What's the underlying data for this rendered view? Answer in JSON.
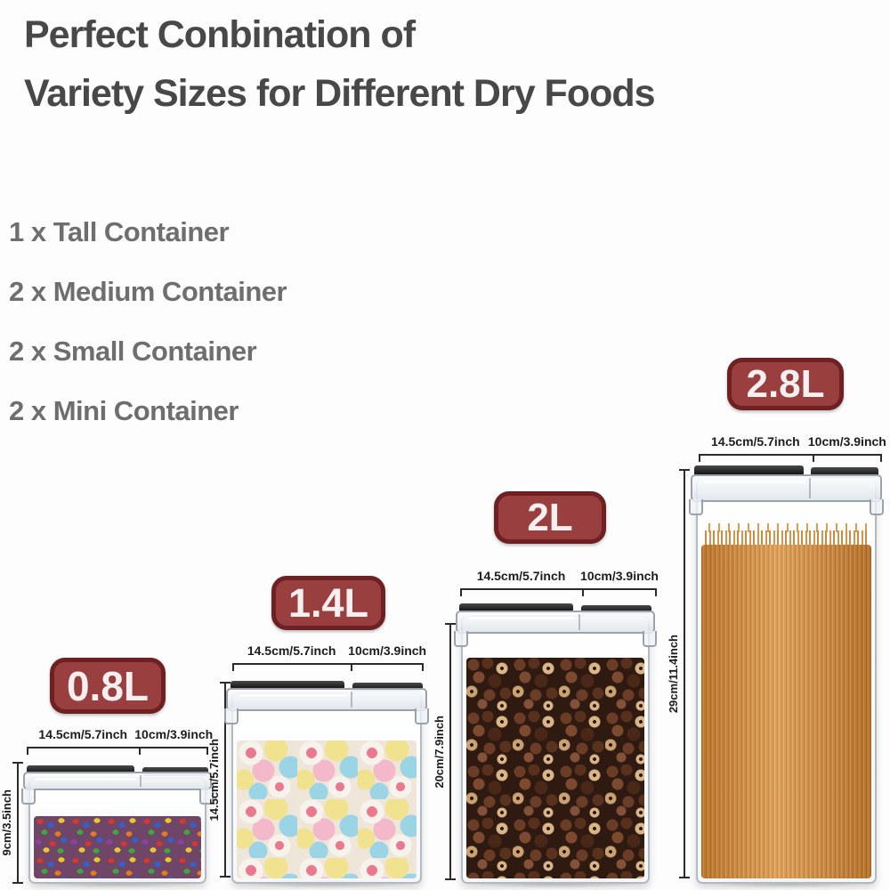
{
  "title": {
    "line1": "Perfect Conbination of",
    "line2": "Variety Sizes for Different Dry Foods"
  },
  "set_contents": [
    "1 x Tall Container",
    "2 x Medium Container",
    "2 x Small Container",
    "2 x Mini Container"
  ],
  "containers": [
    {
      "name": "mini",
      "capacity": "0.8L",
      "width": "14.5cm/5.7inch",
      "depth": "10cm/3.9inch",
      "height": "9cm/3.5inch",
      "contents": "rainbow candies"
    },
    {
      "name": "small",
      "capacity": "1.4L",
      "width": "14.5cm/5.7inch",
      "depth": "10cm/3.9inch",
      "height": "14.5cm/5.7inch",
      "contents": "marshmallows"
    },
    {
      "name": "medium",
      "capacity": "2L",
      "width": "14.5cm/5.7inch",
      "depth": "10cm/3.9inch",
      "height": "20cm/7.9inch",
      "contents": "chocolate cereal"
    },
    {
      "name": "tall",
      "capacity": "2.8L",
      "width": "14.5cm/5.7inch",
      "depth": "10cm/3.9inch",
      "height": "29cm/11.4inch",
      "contents": "spaghetti"
    }
  ],
  "colors": {
    "badge_red": "#9a3f3f",
    "badge_border": "#6f2022",
    "title_text": "#484848",
    "list_text": "#6e6e6e",
    "dimension_text": "#1c1c1c",
    "lid_black": "#0a0a0a",
    "spaghetti_orange": "#d28c3d"
  }
}
